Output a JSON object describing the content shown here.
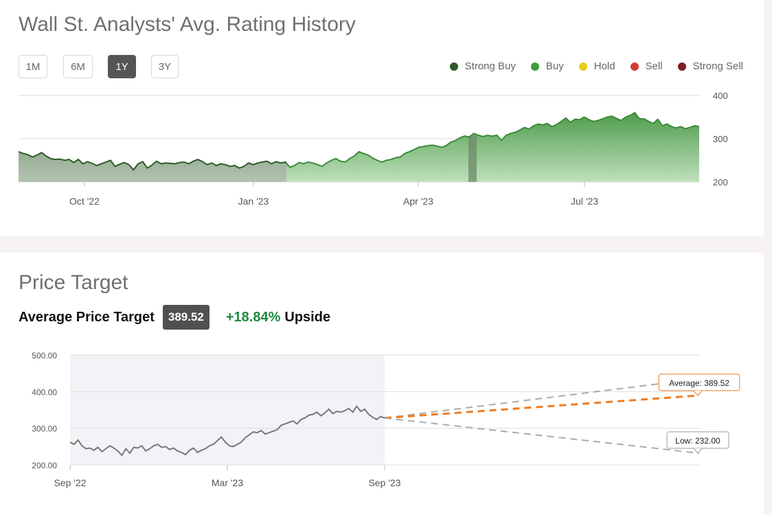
{
  "rating_section": {
    "title": "Wall St. Analysts' Avg. Rating History",
    "range_buttons": [
      {
        "label": "1M",
        "active": false
      },
      {
        "label": "6M",
        "active": false
      },
      {
        "label": "1Y",
        "active": true
      },
      {
        "label": "3Y",
        "active": false
      }
    ],
    "legend": [
      {
        "label": "Strong Buy",
        "color": "#2d5a27"
      },
      {
        "label": "Buy",
        "color": "#3f9a3c"
      },
      {
        "label": "Hold",
        "color": "#e5d017"
      },
      {
        "label": "Sell",
        "color": "#d33b34"
      },
      {
        "label": "Strong Sell",
        "color": "#7b1e1e"
      }
    ]
  },
  "price_section": {
    "title": "Price Target",
    "average_label": "Average Price Target",
    "average_value": "389.52",
    "upside_pct": "+18.84%",
    "upside_word": "Upside"
  },
  "chart_data": [
    {
      "type": "area",
      "title": "",
      "x_ticks": [
        "Oct '22",
        "Jan '23",
        "Apr '23",
        "Jul '23"
      ],
      "y_ticks": [
        "400",
        "300",
        "200"
      ],
      "ylim": [
        200,
        400
      ],
      "grid": true,
      "legend_placement": "top-right",
      "segments": [
        {
          "name": "Strong Buy",
          "color": "#2d5a27",
          "from": "2022-09",
          "to": "2023-01-end"
        },
        {
          "name": "Buy",
          "color": "#3f9a3c",
          "from": "2023-01-end",
          "to": "2023-09"
        }
      ],
      "series": [
        {
          "name": "Price",
          "values": [
            270,
            266,
            263,
            258,
            262,
            268,
            260,
            254,
            252,
            253,
            250,
            252,
            245,
            252,
            242,
            247,
            243,
            238,
            242,
            246,
            250,
            236,
            241,
            245,
            240,
            228,
            242,
            247,
            232,
            239,
            248,
            242,
            244,
            243,
            242,
            245,
            246,
            242,
            248,
            252,
            247,
            240,
            244,
            238,
            242,
            240,
            236,
            238,
            232,
            236,
            244,
            240,
            244,
            246,
            248,
            242,
            247,
            244,
            246,
            234,
            238,
            245,
            242,
            246,
            244,
            240,
            236,
            244,
            250,
            254,
            248,
            246,
            254,
            260,
            270,
            266,
            262,
            255,
            250,
            246,
            250,
            252,
            256,
            258,
            266,
            270,
            275,
            280,
            282,
            284,
            285,
            283,
            280,
            284,
            292,
            296,
            302,
            306,
            304,
            312,
            308,
            305,
            308,
            306,
            308,
            296,
            308,
            312,
            315,
            320,
            326,
            322,
            330,
            334,
            332,
            335,
            328,
            333,
            340,
            348,
            338,
            345,
            344,
            350,
            344,
            340,
            342,
            346,
            350,
            352,
            347,
            342,
            350,
            354,
            360,
            346,
            346,
            340,
            335,
            345,
            330,
            334,
            328,
            325,
            328,
            323,
            326,
            330,
            328
          ]
        }
      ]
    },
    {
      "type": "line",
      "title": "",
      "x_ticks": [
        "Sep '22",
        "Mar '23",
        "Sep '23"
      ],
      "y_ticks": [
        "500.00",
        "400.00",
        "300.00",
        "200.00"
      ],
      "ylim": [
        200,
        500
      ],
      "grid": true,
      "series": [
        {
          "name": "Price",
          "color": "#777777",
          "values": [
            262,
            256,
            268,
            252,
            244,
            246,
            240,
            248,
            236,
            244,
            252,
            246,
            238,
            226,
            244,
            232,
            248,
            246,
            252,
            238,
            244,
            252,
            256,
            248,
            250,
            242,
            246,
            238,
            234,
            228,
            240,
            246,
            234,
            240,
            244,
            252,
            256,
            266,
            276,
            262,
            252,
            250,
            256,
            262,
            274,
            282,
            290,
            288,
            294,
            284,
            288,
            292,
            296,
            308,
            312,
            316,
            320,
            312,
            324,
            328,
            336,
            338,
            344,
            334,
            342,
            352,
            340,
            346,
            344,
            348,
            354,
            344,
            360,
            346,
            352,
            338,
            330,
            324,
            332,
            328
          ]
        },
        {
          "name": "High",
          "color": "#aaaaaa",
          "dashed": true,
          "values": [
            328,
            435
          ]
        },
        {
          "name": "Average",
          "color": "#f07b1f",
          "dashed": true,
          "values": [
            328,
            389.52
          ]
        },
        {
          "name": "Low",
          "color": "#aaaaaa",
          "dashed": true,
          "values": [
            328,
            232.0
          ]
        }
      ],
      "annotations": [
        {
          "label": "Average: 389.52",
          "value": 389.52,
          "border_color": "#f07b1f"
        },
        {
          "label": "Low: 232.00",
          "value": 232.0,
          "border_color": "#999999"
        }
      ]
    }
  ]
}
